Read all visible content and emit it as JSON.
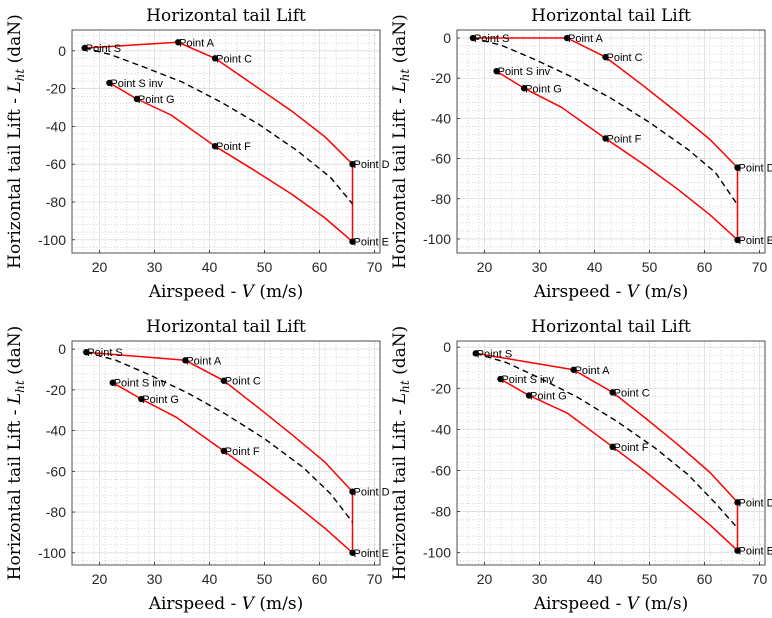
{
  "figure_title": "",
  "colors": {
    "envelope": "#ff0000",
    "stall_line": "#000000",
    "points": "#000000",
    "grid_major": "#dcdcdc",
    "grid_minor": "#bdbdbd",
    "axes": "#262626"
  },
  "chart_data": [
    {
      "type": "line",
      "title": "Horizontal tail Lift",
      "xlabel": "Airspeed - V (m/s)",
      "ylabel": "Horizontal tail Lift - L_ht (daN)",
      "xlim": [
        15,
        71
      ],
      "ylim": [
        -107,
        11
      ],
      "xticks": [
        20,
        30,
        40,
        50,
        60,
        70
      ],
      "yticks": [
        0,
        -20,
        -40,
        -60,
        -80,
        -100
      ],
      "grid": "major and minor",
      "points": [
        {
          "label": "Point S",
          "x": 17.3,
          "y": 1.5
        },
        {
          "label": "Point A",
          "x": 34.3,
          "y": 4.5
        },
        {
          "label": "Point C",
          "x": 41.0,
          "y": -4.0
        },
        {
          "label": "Point D",
          "x": 66.0,
          "y": -60.0
        },
        {
          "label": "Point E",
          "x": 66.0,
          "y": -101.0
        },
        {
          "label": "Point F",
          "x": 41.0,
          "y": -50.5
        },
        {
          "label": "Point G",
          "x": 26.8,
          "y": -25.5
        },
        {
          "label": "Point S inv",
          "x": 21.8,
          "y": -17.0
        }
      ],
      "series": [
        {
          "style": "red solid",
          "x": [
            17.3,
            34.3,
            41.0,
            48,
            55,
            61,
            66.0,
            66.0
          ],
          "y": [
            1.5,
            4.5,
            -4.0,
            -18,
            -32,
            -45.5,
            -60.0,
            -101.0
          ]
        },
        {
          "style": "red solid",
          "x": [
            21.8,
            26.8,
            33,
            41.0,
            48,
            55,
            61,
            66.0
          ],
          "y": [
            -17.0,
            -25.5,
            -34,
            -50.5,
            -63,
            -76,
            -88.5,
            -101.0
          ]
        },
        {
          "style": "black dashed",
          "x": [
            17.3,
            22,
            28,
            35,
            42,
            49,
            56,
            62,
            66.0
          ],
          "y": [
            1.5,
            -2,
            -8.5,
            -16.5,
            -27,
            -39,
            -53,
            -67,
            -81.0
          ]
        }
      ]
    },
    {
      "type": "line",
      "title": "Horizontal tail Lift",
      "xlabel": "Airspeed - V (m/s)",
      "ylabel": "Horizontal tail Lift - L_ht (daN)",
      "xlim": [
        15,
        71
      ],
      "ylim": [
        -107,
        4
      ],
      "xticks": [
        20,
        30,
        40,
        50,
        60,
        70
      ],
      "yticks": [
        0,
        -20,
        -40,
        -60,
        -80,
        -100
      ],
      "grid": "major and minor",
      "points": [
        {
          "label": "Point S",
          "x": 17.9,
          "y": 0.0
        },
        {
          "label": "Point A",
          "x": 35.0,
          "y": 0.0
        },
        {
          "label": "Point C",
          "x": 42.0,
          "y": -9.5
        },
        {
          "label": "Point D",
          "x": 66.0,
          "y": -64.5
        },
        {
          "label": "Point E",
          "x": 66.0,
          "y": -100.5
        },
        {
          "label": "Point F",
          "x": 42.0,
          "y": -50.0
        },
        {
          "label": "Point G",
          "x": 27.2,
          "y": -25.0
        },
        {
          "label": "Point S inv",
          "x": 22.2,
          "y": -16.5
        }
      ],
      "series": [
        {
          "style": "red solid",
          "x": [
            17.9,
            35.0,
            42.0,
            49,
            55,
            61,
            66.0,
            66.0
          ],
          "y": [
            0.0,
            0.0,
            -9.5,
            -24,
            -37,
            -50.5,
            -64.5,
            -100.5
          ]
        },
        {
          "style": "red solid",
          "x": [
            22.2,
            27.2,
            34,
            42.0,
            49,
            55,
            61,
            66.0
          ],
          "y": [
            -16.5,
            -25.0,
            -34.5,
            -50.0,
            -63,
            -75,
            -88,
            -100.5
          ]
        },
        {
          "style": "black dashed",
          "x": [
            17.9,
            23,
            29,
            36,
            43,
            50,
            57,
            62,
            66.0
          ],
          "y": [
            0.0,
            -3.5,
            -10.5,
            -19.5,
            -30,
            -42,
            -55.5,
            -67,
            -83.0
          ]
        }
      ]
    },
    {
      "type": "line",
      "title": "Horizontal tail Lift",
      "xlabel": "Airspeed - V (m/s)",
      "ylabel": "Horizontal tail Lift - L_ht (daN)",
      "xlim": [
        15,
        71
      ],
      "ylim": [
        -106,
        4
      ],
      "xticks": [
        20,
        30,
        40,
        50,
        60,
        70
      ],
      "yticks": [
        0,
        -20,
        -40,
        -60,
        -80,
        -100
      ],
      "grid": "major and minor",
      "points": [
        {
          "label": "Point S",
          "x": 17.6,
          "y": -1.5
        },
        {
          "label": "Point A",
          "x": 35.6,
          "y": -5.5
        },
        {
          "label": "Point C",
          "x": 42.6,
          "y": -15.5
        },
        {
          "label": "Point D",
          "x": 66.0,
          "y": -70.0
        },
        {
          "label": "Point E",
          "x": 66.0,
          "y": -100.0
        },
        {
          "label": "Point F",
          "x": 42.6,
          "y": -50.0
        },
        {
          "label": "Point G",
          "x": 27.6,
          "y": -24.5
        },
        {
          "label": "Point S inv",
          "x": 22.4,
          "y": -16.5
        }
      ],
      "series": [
        {
          "style": "red solid",
          "x": [
            17.6,
            35.6,
            42.6,
            49,
            55,
            61,
            66.0,
            66.0
          ],
          "y": [
            -1.5,
            -5.5,
            -15.5,
            -29,
            -42,
            -55.5,
            -70.0,
            -100.0
          ]
        },
        {
          "style": "red solid",
          "x": [
            22.4,
            27.6,
            34,
            42.6,
            49,
            55,
            61,
            66.0
          ],
          "y": [
            -16.5,
            -24.5,
            -33.5,
            -50.0,
            -62.5,
            -75,
            -88,
            -100.0
          ]
        },
        {
          "style": "black dashed",
          "x": [
            17.6,
            23,
            29,
            36,
            43,
            50,
            57,
            62,
            66.0
          ],
          "y": [
            -1.5,
            -5.5,
            -12.5,
            -21.5,
            -32,
            -44,
            -58,
            -71,
            -85.0
          ]
        }
      ]
    },
    {
      "type": "line",
      "title": "Horizontal tail Lift",
      "xlabel": "Airspeed - V (m/s)",
      "ylabel": "Horizontal tail Lift - L_ht (daN)",
      "xlim": [
        15,
        71
      ],
      "ylim": [
        -106,
        3
      ],
      "xticks": [
        20,
        30,
        40,
        50,
        60,
        70
      ],
      "yticks": [
        0,
        -20,
        -40,
        -60,
        -80,
        -100
      ],
      "grid": "major and minor",
      "points": [
        {
          "label": "Point S",
          "x": 18.4,
          "y": -3.0
        },
        {
          "label": "Point A",
          "x": 36.2,
          "y": -11.0
        },
        {
          "label": "Point C",
          "x": 43.3,
          "y": -22.0
        },
        {
          "label": "Point D",
          "x": 66.0,
          "y": -75.5
        },
        {
          "label": "Point E",
          "x": 66.0,
          "y": -99.0
        },
        {
          "label": "Point F",
          "x": 43.3,
          "y": -48.5
        },
        {
          "label": "Point G",
          "x": 28.1,
          "y": -23.5
        },
        {
          "label": "Point S inv",
          "x": 22.9,
          "y": -15.5
        }
      ],
      "series": [
        {
          "style": "red solid",
          "x": [
            18.4,
            36.2,
            43.3,
            49,
            55,
            61,
            66.0,
            66.0
          ],
          "y": [
            -3.0,
            -11.0,
            -22.0,
            -34,
            -47,
            -61,
            -75.5,
            -99.0
          ]
        },
        {
          "style": "red solid",
          "x": [
            22.9,
            28.1,
            35,
            43.3,
            49,
            55,
            61,
            66.0
          ],
          "y": [
            -15.5,
            -23.5,
            -32,
            -48.5,
            -60,
            -73,
            -86.5,
            -99.0
          ]
        },
        {
          "style": "black dashed",
          "x": [
            18.4,
            24,
            30,
            37,
            44,
            51,
            57,
            62,
            66.0
          ],
          "y": [
            -3.0,
            -7.5,
            -15,
            -24.5,
            -36,
            -49,
            -62,
            -76,
            -88.0
          ]
        }
      ]
    }
  ]
}
